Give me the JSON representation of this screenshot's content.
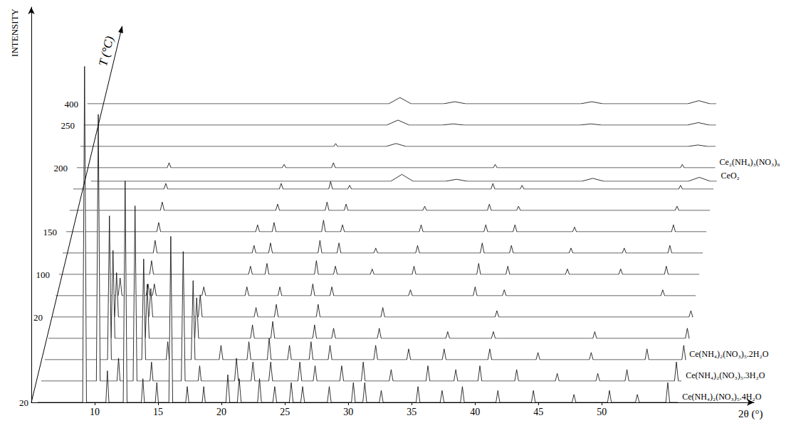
{
  "chart_data": {
    "type": "line",
    "x_label": "2θ (°)",
    "y_label": "INTENSITY",
    "t_label": "T (°C)",
    "xlim": [
      5,
      62
    ],
    "xticks": [
      10,
      15,
      20,
      25,
      30,
      35,
      40,
      45,
      50
    ],
    "ylim": [
      0,
      100
    ],
    "yticks": [],
    "grid": false,
    "color": "#000000",
    "x_span": [
      5.5,
      56
    ],
    "t_categories": [
      "20",
      null,
      null,
      null,
      "20",
      null,
      "100",
      null,
      "150",
      null,
      null,
      "200",
      null,
      "250",
      "400",
      null
    ],
    "series": [
      {
        "peaks": [
          [
            9.2,
            85,
            0.15
          ],
          [
            11.0,
            8,
            0.12
          ],
          [
            12.4,
            56,
            0.15
          ],
          [
            13.8,
            6,
            0.12
          ],
          [
            14.9,
            5,
            0.12
          ],
          [
            16.0,
            42,
            0.15
          ],
          [
            17.3,
            4,
            0.12
          ],
          [
            18.6,
            4,
            0.12
          ],
          [
            20.5,
            7,
            0.15
          ],
          [
            21.4,
            6,
            0.15
          ],
          [
            23.0,
            6,
            0.15
          ],
          [
            24.2,
            4,
            0.15
          ],
          [
            25.5,
            5,
            0.15
          ],
          [
            26.4,
            4,
            0.15
          ],
          [
            28.5,
            4,
            0.15
          ],
          [
            30.4,
            5,
            0.15
          ],
          [
            31.3,
            5,
            0.15
          ],
          [
            32.6,
            3,
            0.15
          ],
          [
            35.5,
            4,
            0.15
          ],
          [
            37.4,
            3,
            0.15
          ],
          [
            39.0,
            4,
            0.15
          ],
          [
            41.8,
            3,
            0.15
          ],
          [
            44.6,
            3,
            0.15
          ],
          [
            47.8,
            2,
            0.15
          ],
          [
            50.6,
            3,
            0.15
          ],
          [
            52.8,
            2,
            0.15
          ],
          [
            55.2,
            5,
            0.15
          ]
        ]
      },
      {
        "peaks": [
          [
            10.0,
            70,
            0.15
          ],
          [
            11.6,
            6,
            0.12
          ],
          [
            12.9,
            46,
            0.15
          ],
          [
            14.2,
            5,
            0.12
          ],
          [
            16.7,
            34,
            0.15
          ],
          [
            18.0,
            4,
            0.12
          ],
          [
            20.9,
            6,
            0.15
          ],
          [
            22.2,
            5,
            0.15
          ],
          [
            23.6,
            5,
            0.15
          ],
          [
            25.9,
            5,
            0.15
          ],
          [
            27.1,
            4,
            0.15
          ],
          [
            29.2,
            4,
            0.15
          ],
          [
            30.9,
            5,
            0.15
          ],
          [
            33.1,
            3,
            0.15
          ],
          [
            36.0,
            4,
            0.15
          ],
          [
            38.2,
            3,
            0.15
          ],
          [
            40.1,
            4,
            0.15
          ],
          [
            43.0,
            3,
            0.15
          ],
          [
            46.2,
            2,
            0.15
          ],
          [
            49.4,
            2,
            0.15
          ],
          [
            51.7,
            3,
            0.15
          ],
          [
            55.6,
            5,
            0.15
          ]
        ]
      },
      {
        "peaks": [
          [
            10.6,
            40,
            0.15
          ],
          [
            13.3,
            28,
            0.15
          ],
          [
            15.2,
            5,
            0.12
          ],
          [
            17.2,
            22,
            0.15
          ],
          [
            19.4,
            4,
            0.15
          ],
          [
            21.6,
            5,
            0.15
          ],
          [
            23.2,
            6,
            0.15
          ],
          [
            24.8,
            4,
            0.15
          ],
          [
            26.5,
            5,
            0.15
          ],
          [
            28.0,
            4,
            0.15
          ],
          [
            31.6,
            4,
            0.15
          ],
          [
            34.2,
            3,
            0.15
          ],
          [
            37.0,
            3,
            0.15
          ],
          [
            40.6,
            3,
            0.15
          ],
          [
            44.4,
            2,
            0.15
          ],
          [
            48.6,
            2,
            0.15
          ],
          [
            53.0,
            3,
            0.15
          ],
          [
            55.9,
            4,
            0.15
          ]
        ]
      },
      {
        "peaks": [
          [
            10.6,
            26,
            0.15
          ],
          [
            13.3,
            16,
            0.15
          ],
          [
            17.2,
            12,
            0.15
          ],
          [
            21.6,
            4,
            0.15
          ],
          [
            23.2,
            5,
            0.15
          ],
          [
            26.5,
            4,
            0.15
          ],
          [
            28.0,
            3,
            0.15
          ],
          [
            31.6,
            3,
            0.15
          ],
          [
            37.0,
            2,
            0.15
          ],
          [
            40.6,
            2,
            0.15
          ],
          [
            48.6,
            2,
            0.15
          ],
          [
            55.9,
            3,
            0.15
          ]
        ]
      },
      {
        "peaks": [
          [
            10.6,
            14,
            0.15
          ],
          [
            13.3,
            9,
            0.15
          ],
          [
            17.2,
            7,
            0.15
          ],
          [
            21.6,
            3,
            0.15
          ],
          [
            23.2,
            4,
            0.15
          ],
          [
            26.5,
            4,
            0.15
          ],
          [
            31.6,
            3,
            0.15
          ],
          [
            40.6,
            2,
            0.15
          ],
          [
            55.9,
            2,
            0.15
          ]
        ]
      },
      {
        "peaks": [
          [
            10.6,
            6,
            0.15
          ],
          [
            12.8,
            4,
            0.15
          ],
          [
            13.3,
            4,
            0.15
          ],
          [
            17.2,
            3,
            0.15
          ],
          [
            20.6,
            3,
            0.15
          ],
          [
            23.2,
            3,
            0.15
          ],
          [
            25.8,
            4,
            0.15
          ],
          [
            27.3,
            3,
            0.15
          ],
          [
            33.5,
            2,
            0.15
          ],
          [
            38.6,
            3,
            0.15
          ],
          [
            40.9,
            2,
            0.15
          ],
          [
            53.4,
            2,
            0.15
          ]
        ]
      },
      {
        "peaks": [
          [
            12.8,
            5,
            0.15
          ],
          [
            20.6,
            3,
            0.15
          ],
          [
            21.9,
            4,
            0.15
          ],
          [
            25.8,
            5,
            0.15
          ],
          [
            27.3,
            3,
            0.15
          ],
          [
            30.2,
            2,
            0.15
          ],
          [
            33.5,
            3,
            0.15
          ],
          [
            38.6,
            4,
            0.15
          ],
          [
            40.9,
            3,
            0.15
          ],
          [
            45.6,
            2,
            0.15
          ],
          [
            49.8,
            2,
            0.15
          ],
          [
            53.4,
            3,
            0.15
          ]
        ]
      },
      {
        "peaks": [
          [
            12.8,
            5,
            0.15
          ],
          [
            20.6,
            3,
            0.15
          ],
          [
            21.9,
            4,
            0.15
          ],
          [
            25.8,
            5,
            0.15
          ],
          [
            27.3,
            4,
            0.15
          ],
          [
            30.2,
            2,
            0.15
          ],
          [
            33.5,
            3,
            0.15
          ],
          [
            38.6,
            4,
            0.15
          ],
          [
            40.9,
            3,
            0.15
          ],
          [
            45.6,
            2,
            0.15
          ],
          [
            49.8,
            2,
            0.15
          ],
          [
            53.4,
            3,
            0.15
          ]
        ]
      },
      {
        "peaks": [
          [
            12.8,
            4,
            0.15
          ],
          [
            20.6,
            3,
            0.15
          ],
          [
            21.9,
            4,
            0.15
          ],
          [
            25.8,
            5,
            0.15
          ],
          [
            27.3,
            3,
            0.15
          ],
          [
            33.5,
            3,
            0.15
          ],
          [
            38.6,
            3,
            0.15
          ],
          [
            40.9,
            3,
            0.15
          ],
          [
            45.6,
            2,
            0.15
          ],
          [
            53.4,
            3,
            0.15
          ]
        ]
      },
      {
        "peaks": [
          [
            12.8,
            4,
            0.15
          ],
          [
            21.9,
            3,
            0.15
          ],
          [
            25.8,
            4,
            0.15
          ],
          [
            27.3,
            3,
            0.15
          ],
          [
            33.5,
            2,
            0.15
          ],
          [
            38.6,
            3,
            0.15
          ],
          [
            40.9,
            2,
            0.15
          ],
          [
            53.4,
            2,
            0.15
          ]
        ]
      },
      {
        "peaks": [
          [
            12.8,
            3,
            0.15
          ],
          [
            21.9,
            3,
            0.15
          ],
          [
            25.8,
            4,
            0.15
          ],
          [
            27.3,
            2,
            0.15
          ],
          [
            38.6,
            3,
            0.15
          ],
          [
            40.9,
            2,
            0.15
          ],
          [
            53.4,
            2,
            0.15
          ]
        ]
      },
      {
        "peaks": [
          [
            12.8,
            3,
            0.15
          ],
          [
            21.9,
            2,
            0.15
          ],
          [
            25.8,
            3,
            0.15
          ],
          [
            38.6,
            2,
            0.15
          ],
          [
            53.4,
            2,
            0.15
          ]
        ]
      },
      {
        "peaks": [
          [
            25.8,
            2,
            0.15
          ],
          [
            30.6,
            2,
            0.8
          ],
          [
            54.6,
            1,
            0.8
          ]
        ]
      },
      {
        "peaks": [
          [
            30.6,
            4,
            0.9
          ],
          [
            35.0,
            1,
            0.9
          ],
          [
            46.0,
            1,
            0.9
          ],
          [
            54.6,
            2,
            0.9
          ]
        ]
      },
      {
        "peaks": [
          [
            30.6,
            6,
            0.9
          ],
          [
            35.0,
            2,
            0.9
          ],
          [
            46.0,
            2,
            0.9
          ],
          [
            54.6,
            3,
            0.9
          ]
        ]
      },
      {
        "peaks": [
          [
            30.6,
            7,
            0.9
          ],
          [
            35.0,
            2,
            0.9
          ],
          [
            46.0,
            3,
            0.9
          ],
          [
            54.6,
            4,
            0.9
          ]
        ]
      }
    ],
    "annotations": [
      {
        "text": "Ce(NH₄)₂(NO₃)₅.4H₂O",
        "trace": 0
      },
      {
        "text": "Ce(NH₄)₂(NO₃)₅.3H₂O",
        "trace": 1
      },
      {
        "text": "Ce(NH₄)₂(NO₃)₅.2H₂O",
        "trace": 2
      },
      {
        "text": "Ce₂(NH₄)₃(NO₃)₉",
        "trace": 11
      },
      {
        "text": "CeO₂",
        "trace": 15
      }
    ]
  }
}
